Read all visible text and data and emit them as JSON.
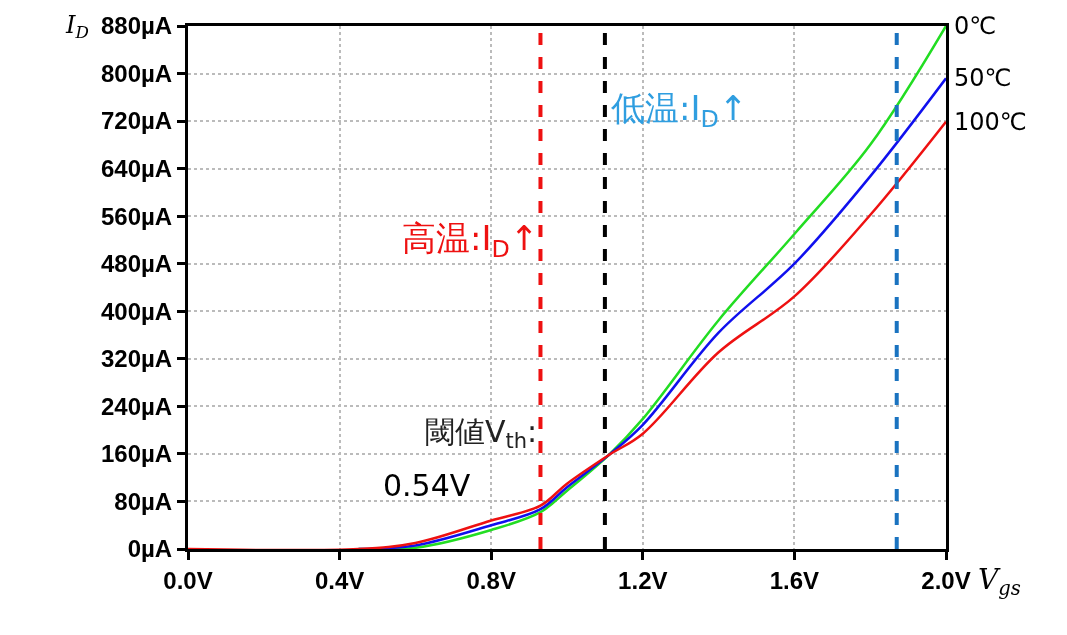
{
  "chart_data": {
    "type": "line",
    "xlabel": "V$_{gs}$",
    "ylabel": "I$_{D}$",
    "xlim": [
      0,
      2.0
    ],
    "ylim": [
      0,
      880
    ],
    "xticks": [
      {
        "value": 0,
        "label": "0.0V"
      },
      {
        "value": 0.4,
        "label": "0.4V"
      },
      {
        "value": 0.8,
        "label": "0.8V"
      },
      {
        "value": 1.2,
        "label": "1.2V"
      },
      {
        "value": 1.6,
        "label": "1.6V"
      },
      {
        "value": 2.0,
        "label": "2.0V"
      }
    ],
    "yticks": [
      {
        "value": 0,
        "label": "0µA"
      },
      {
        "value": 80,
        "label": "80µA"
      },
      {
        "value": 160,
        "label": "160µA"
      },
      {
        "value": 240,
        "label": "240µA"
      },
      {
        "value": 320,
        "label": "320µA"
      },
      {
        "value": 400,
        "label": "400µA"
      },
      {
        "value": 480,
        "label": "480µA"
      },
      {
        "value": 560,
        "label": "560µA"
      },
      {
        "value": 640,
        "label": "640µA"
      },
      {
        "value": 720,
        "label": "720µA"
      },
      {
        "value": 800,
        "label": "800µA"
      },
      {
        "value": 880,
        "label": "880µA"
      }
    ],
    "grid": true,
    "marker": "none",
    "line_style": "solid",
    "legend": false,
    "series": [
      {
        "name": "0℃",
        "color": "#22dd22",
        "x": [
          0.45,
          0.6,
          0.8,
          0.93,
          1.0,
          1.11,
          1.2,
          1.4,
          1.6,
          1.8,
          2.0
        ],
        "values": [
          0,
          2,
          32,
          62,
          98,
          158,
          219,
          385,
          530,
          680,
          880
        ]
      },
      {
        "name": "50℃",
        "color": "#1010ee",
        "x": [
          0.45,
          0.6,
          0.8,
          0.93,
          1.0,
          1.11,
          1.2,
          1.4,
          1.6,
          1.8,
          2.0
        ],
        "values": [
          0,
          6,
          40,
          67,
          104,
          158,
          209,
          364,
          480,
          627,
          792
        ]
      },
      {
        "name": "100℃",
        "color": "#ee1111",
        "x": [
          0,
          0.45,
          0.6,
          0.8,
          0.93,
          1.0,
          1.11,
          1.2,
          1.4,
          1.6,
          1.8,
          2.0
        ],
        "values": [
          0,
          0,
          10,
          48,
          73,
          110,
          158,
          194,
          331,
          425,
          562,
          719
        ]
      }
    ],
    "ref_lines": [
      {
        "axis": "x",
        "value": 0.93,
        "color": "#ee1111",
        "line_style": "dashed"
      },
      {
        "axis": "x",
        "value": 1.1,
        "color": "#000000",
        "line_style": "dashed"
      },
      {
        "axis": "x",
        "value": 1.87,
        "color": "#1a73c0",
        "line_style": "dashed"
      }
    ],
    "annotations": [
      "高温:I$_{D}$↑",
      "低温:I$_{D}$↑",
      "閾値V$_{th}$:",
      "0.54V"
    ]
  }
}
